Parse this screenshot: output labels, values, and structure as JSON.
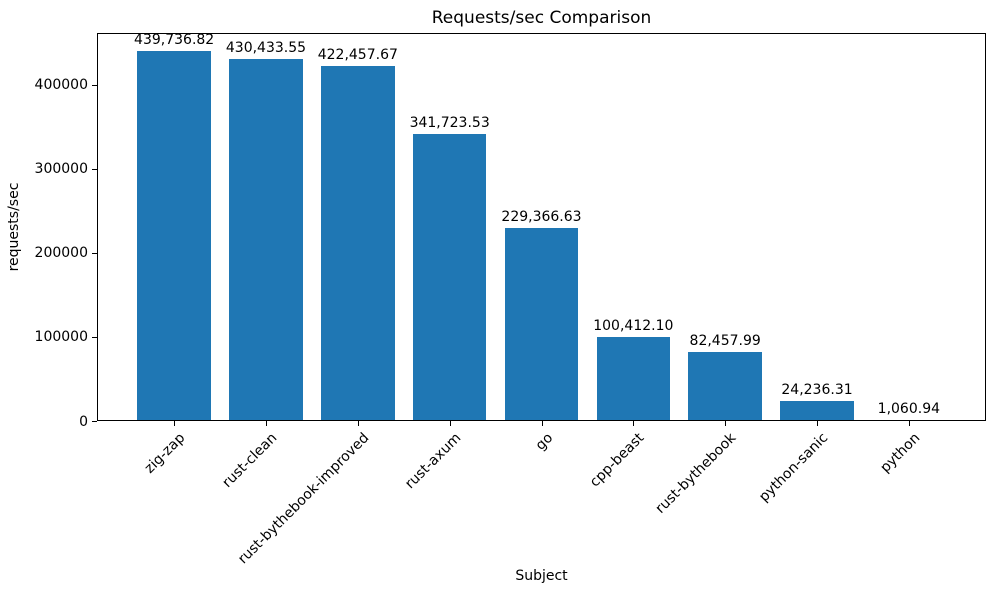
{
  "chart_data": {
    "type": "bar",
    "title": "Requests/sec Comparison",
    "xlabel": "Subject",
    "ylabel": "requests/sec",
    "categories": [
      "zig-zap",
      "rust-clean",
      "rust-bythebook-improved",
      "rust-axum",
      "go",
      "cpp-beast",
      "rust-bythebook",
      "python-sanic",
      "python"
    ],
    "values": [
      439736.82,
      430433.55,
      422457.67,
      341723.53,
      229366.63,
      100412.1,
      82457.99,
      24236.31,
      1060.94
    ],
    "value_labels": [
      "439,736.82",
      "430,433.55",
      "422,457.67",
      "341,723.53",
      "229,366.63",
      "100,412.10",
      "82,457.99",
      "24,236.31",
      "1,060.94"
    ],
    "yticks": [
      0,
      100000,
      200000,
      300000,
      400000
    ],
    "ytick_labels": [
      "0",
      "100000",
      "200000",
      "300000",
      "400000"
    ],
    "ylim": [
      0,
      461723
    ],
    "bar_color": "#1f77b4",
    "bar_width_fraction": 0.8,
    "grid": false,
    "legend_position": "none"
  }
}
